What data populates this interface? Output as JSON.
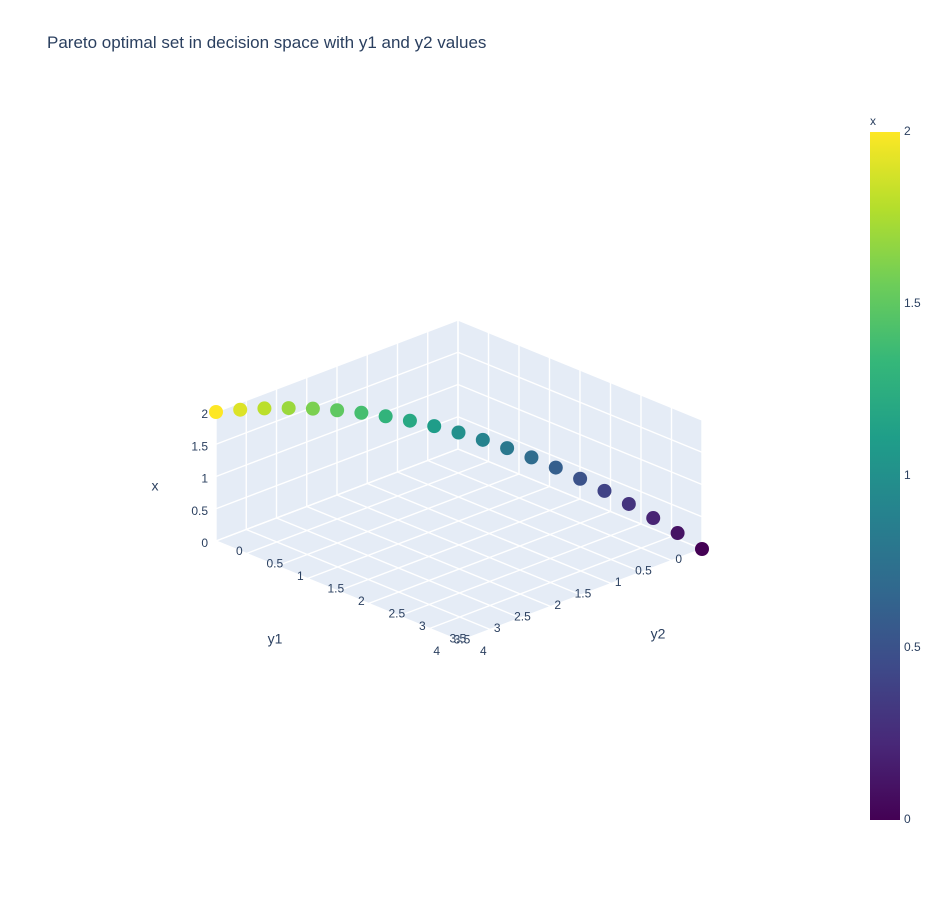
{
  "chart_data": {
    "type": "scatter3d",
    "title": "Pareto optimal set in decision space with y1 and y2 values",
    "axes": {
      "x": {
        "label": "x",
        "range": [
          0,
          2
        ],
        "ticks": [
          "0",
          "0.5",
          "1",
          "1.5",
          "2"
        ]
      },
      "y1": {
        "label": "y1",
        "range": [
          0,
          4
        ],
        "ticks": [
          "0",
          "0.5",
          "1",
          "1.5",
          "2",
          "2.5",
          "3",
          "3.5",
          "4"
        ]
      },
      "y2": {
        "label": "y2",
        "range": [
          0,
          4
        ],
        "ticks": [
          "0",
          "0.5",
          "1",
          "1.5",
          "2",
          "2.5",
          "3",
          "3.5",
          "4"
        ]
      }
    },
    "colorbar": {
      "title": "x",
      "range": [
        0,
        2
      ],
      "ticks": [
        "0",
        "0.5",
        "1",
        "1.5",
        "2"
      ],
      "colorscale": "Viridis"
    },
    "x": [
      0.0,
      0.1,
      0.2,
      0.3,
      0.4,
      0.5,
      0.6,
      0.7,
      0.8,
      0.9,
      1.0,
      1.1,
      1.2,
      1.3,
      1.4,
      1.5,
      1.6,
      1.7,
      1.8,
      1.9,
      2.0
    ],
    "y1": [
      0.0,
      0.01,
      0.04,
      0.09,
      0.16,
      0.25,
      0.36,
      0.49,
      0.64,
      0.81,
      1.0,
      1.21,
      1.44,
      1.69,
      1.96,
      2.25,
      2.56,
      2.89,
      3.24,
      3.61,
      4.0
    ],
    "y2": [
      4.0,
      3.61,
      3.24,
      2.89,
      2.56,
      2.25,
      1.96,
      1.69,
      1.44,
      1.21,
      1.0,
      0.81,
      0.64,
      0.49,
      0.36,
      0.25,
      0.16,
      0.09,
      0.04,
      0.01,
      0.0
    ],
    "grid": true
  }
}
